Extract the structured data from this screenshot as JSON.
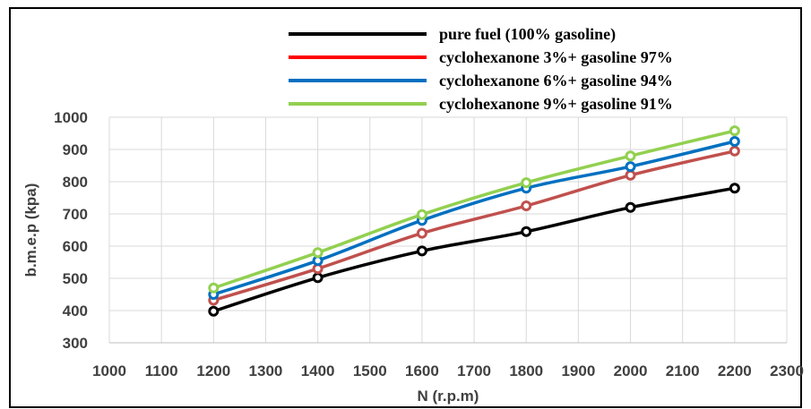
{
  "chart_data": {
    "type": "line",
    "xlabel": "N (r.p.m)",
    "ylabel": "b.m.e.p (kpa)",
    "xlim": [
      1000,
      2300
    ],
    "ylim": [
      300,
      1000
    ],
    "x_ticks": [
      1000,
      1100,
      1200,
      1300,
      1400,
      1500,
      1600,
      1700,
      1800,
      1900,
      2000,
      2100,
      2200,
      2300
    ],
    "y_ticks": [
      300,
      400,
      500,
      600,
      700,
      800,
      900,
      1000
    ],
    "grid": true,
    "legend_position": "top-right",
    "x": [
      1200,
      1400,
      1600,
      1800,
      2000,
      2200
    ],
    "series": [
      {
        "name": "pure fuel (100% gasoline)",
        "color": "#000000",
        "marker_color": "#000000",
        "values": [
          398,
          502,
          585,
          645,
          720,
          780
        ]
      },
      {
        "name": "cyclohexanone 3%+ gasoline 97%",
        "color": "#ff0000",
        "marker_color": "#c0504d",
        "values": [
          432,
          530,
          640,
          725,
          820,
          895
        ]
      },
      {
        "name": "cyclohexanone 6%+ gasoline 94%",
        "color": "#0070c0",
        "marker_color": "#0070c0",
        "values": [
          450,
          555,
          680,
          780,
          847,
          925
        ]
      },
      {
        "name": "cyclohexanone 9%+ gasoline 91%",
        "color": "#92d050",
        "marker_color": "#92d050",
        "values": [
          470,
          580,
          698,
          797,
          880,
          958
        ]
      }
    ]
  }
}
